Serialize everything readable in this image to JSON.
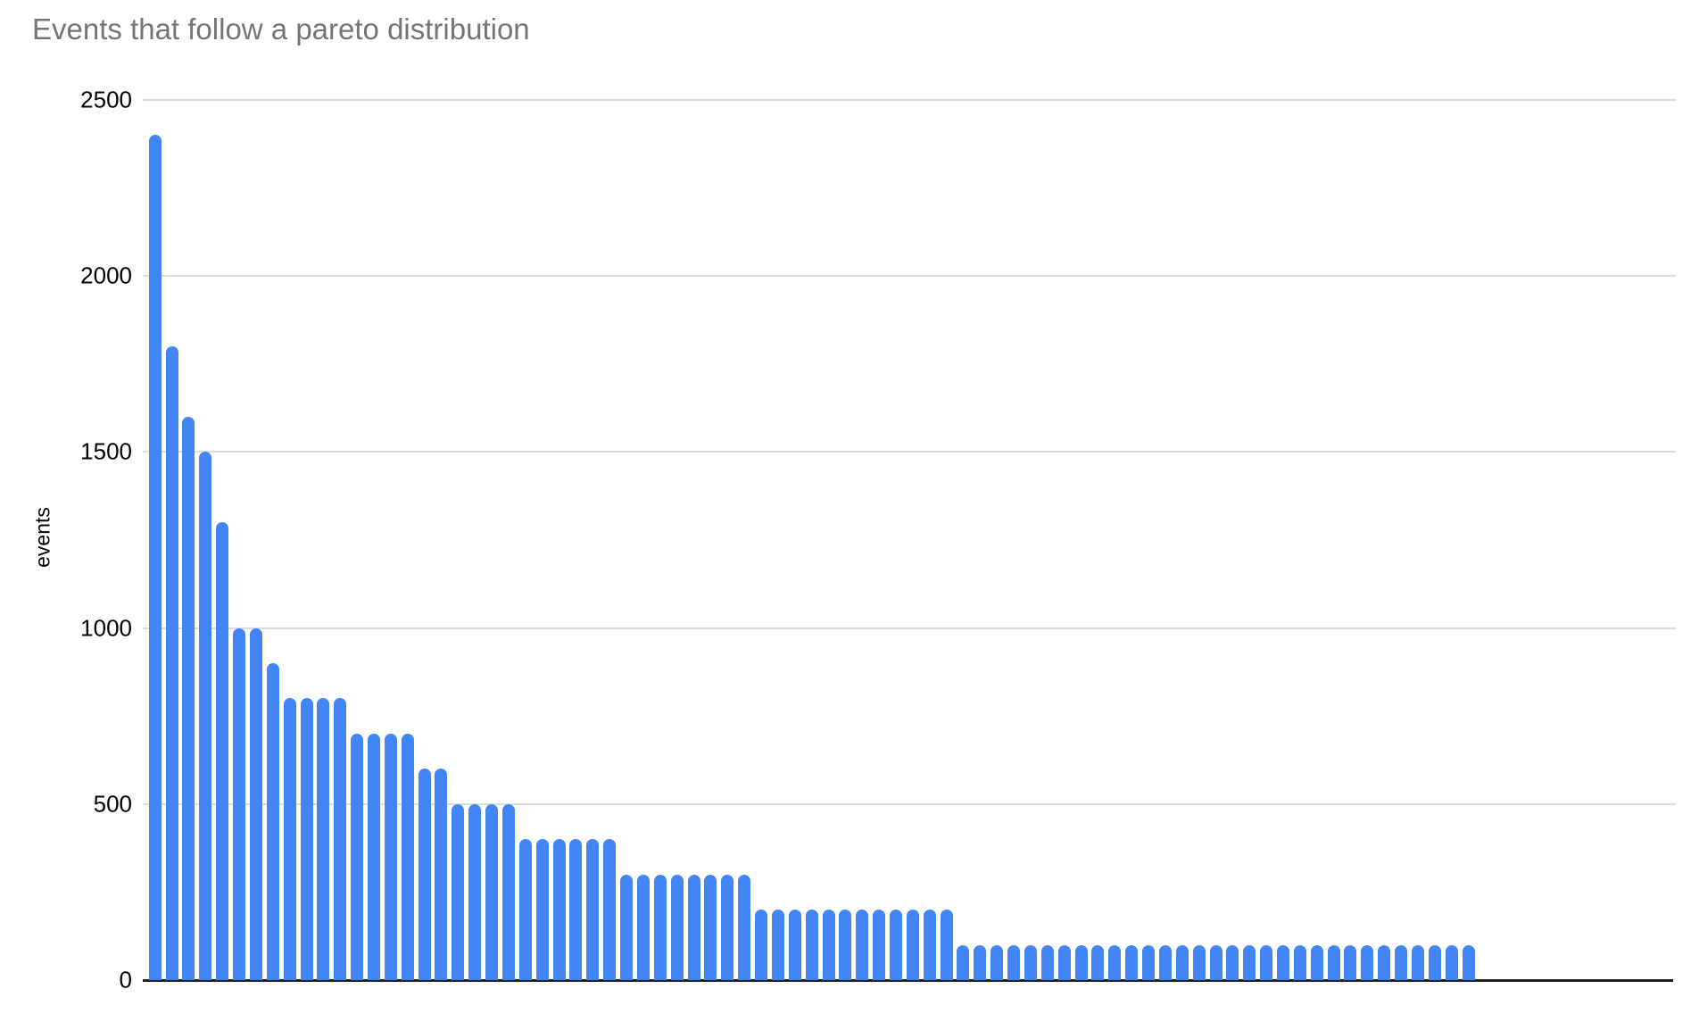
{
  "title": "Events that follow a pareto distribution",
  "chart_data": {
    "type": "bar",
    "title": "Events that follow a pareto distribution",
    "xlabel": "",
    "ylabel": "events",
    "ylim": [
      0,
      2500
    ],
    "yticks": [
      0,
      500,
      1000,
      1500,
      2000,
      2500
    ],
    "grid": true,
    "legend": false,
    "bar_color": "#4285f4",
    "title_color": "#757575",
    "axis_text_color": "#000000",
    "gridline_color": "#dddddd",
    "axis_line_color": "#212121",
    "values": [
      2400,
      1800,
      1600,
      1500,
      1300,
      1000,
      1000,
      900,
      800,
      800,
      800,
      800,
      700,
      700,
      700,
      700,
      600,
      600,
      500,
      500,
      500,
      500,
      400,
      400,
      400,
      400,
      400,
      400,
      300,
      300,
      300,
      300,
      300,
      300,
      300,
      300,
      200,
      200,
      200,
      200,
      200,
      200,
      200,
      200,
      200,
      200,
      200,
      200,
      100,
      100,
      100,
      100,
      100,
      100,
      100,
      100,
      100,
      100,
      100,
      100,
      100,
      100,
      100,
      100,
      100,
      100,
      100,
      100,
      100,
      100,
      100,
      100,
      100,
      100,
      100,
      100,
      100,
      100,
      100
    ]
  }
}
